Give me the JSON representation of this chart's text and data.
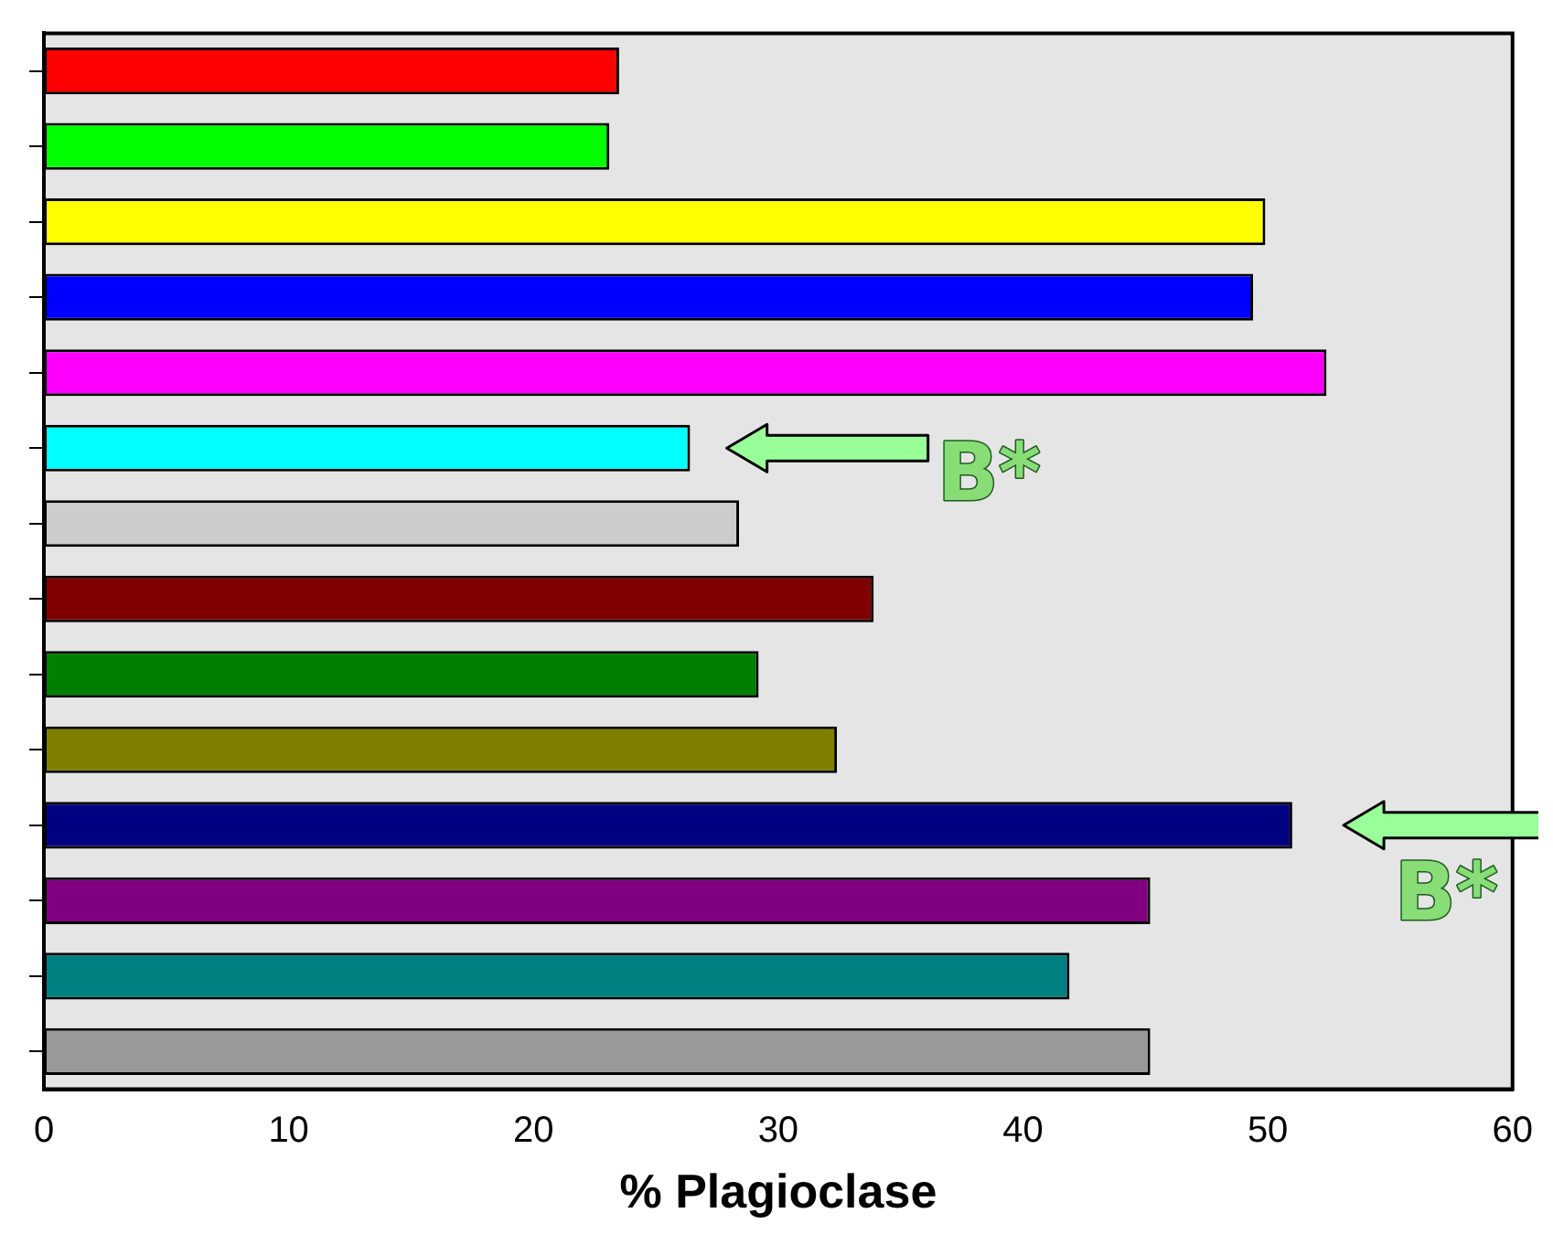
{
  "chart_data": {
    "type": "bar",
    "orientation": "horizontal",
    "xlabel": "% Plagioclase",
    "categories": [
      null,
      null,
      null,
      null,
      null,
      null,
      null,
      null,
      null,
      null,
      null,
      null,
      null,
      null
    ],
    "values": [
      23.5,
      23.1,
      49.9,
      49.4,
      52.4,
      26.4,
      28.4,
      33.9,
      29.2,
      32.4,
      51.0,
      45.2,
      41.9,
      45.2
    ],
    "colors": [
      "#ff0000",
      "#00ff00",
      "#ffff00",
      "#0000ff",
      "#ff00ff",
      "#00ffff",
      "#cccccc",
      "#800000",
      "#008000",
      "#808000",
      "#000080",
      "#800080",
      "#008080",
      "#999999"
    ],
    "xlim": [
      0,
      60
    ],
    "xticks": [
      0,
      10,
      20,
      30,
      40,
      50,
      60
    ],
    "grid": false,
    "legend": false,
    "annotations": [
      "B*",
      "B*"
    ]
  }
}
